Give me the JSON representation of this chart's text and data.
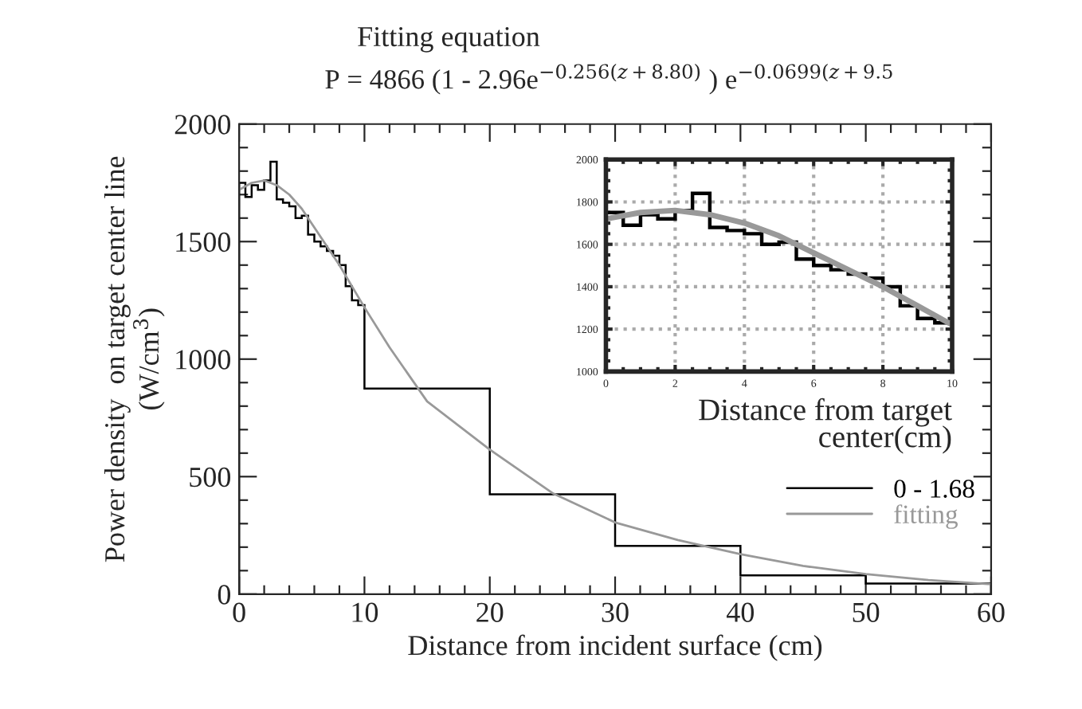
{
  "chart_data": [
    {
      "type": "histogram",
      "title": "Fitting equation",
      "subtitle": "P = 4866 (1 - 2.96e$^{−0.256(z+8.80)}$ ) e$^{−0.0699(z+9.5}$",
      "xlabel": "Distance from incident surface (cm)",
      "ylabel": "Power density  on target center line\n(W/cm$^{3}$)",
      "xlim": [
        0,
        60
      ],
      "ylim": [
        0,
        2000
      ],
      "xticks": [
        0,
        10,
        20,
        30,
        40,
        50,
        60
      ],
      "yticks": [
        0,
        500,
        1000,
        1500,
        2000
      ],
      "grid": false,
      "legend": "right",
      "series": [
        {
          "name": "0 - 1.68",
          "color": "#000000",
          "bins": [
            0,
            0.5,
            1,
            1.5,
            2,
            2.5,
            3,
            3.5,
            4,
            4.5,
            5,
            5.5,
            6,
            6.5,
            7,
            7.5,
            8,
            8.5,
            9,
            9.5,
            10,
            20,
            30,
            40,
            50,
            60
          ],
          "values": [
            1750,
            1690,
            1740,
            1720,
            1760,
            1840,
            1680,
            1665,
            1650,
            1600,
            1610,
            1530,
            1500,
            1480,
            1460,
            1440,
            1400,
            1310,
            1250,
            1230,
            875,
            425,
            205,
            80,
            45
          ]
        },
        {
          "name": "fitting",
          "type": "line",
          "color": "#999999",
          "x": [
            0,
            1,
            2,
            3,
            4,
            5,
            6,
            8,
            10,
            12,
            15,
            20,
            25,
            30,
            35,
            40,
            45,
            50,
            55,
            60
          ],
          "values": [
            1720,
            1750,
            1760,
            1740,
            1700,
            1640,
            1560,
            1400,
            1220,
            1050,
            820,
            615,
            430,
            305,
            230,
            170,
            120,
            85,
            60,
            42
          ]
        }
      ]
    },
    {
      "type": "histogram",
      "xlabel": "Distance from target\ncenter(cm)",
      "xlim": [
        0,
        10
      ],
      "ylim": [
        1000,
        2000
      ],
      "xticks": [
        0,
        2,
        4,
        6,
        8,
        10
      ],
      "yticks": [
        1000,
        1200,
        1400,
        1600,
        1800,
        2000
      ],
      "grid": true,
      "series": [
        {
          "color": "#000000",
          "bins": [
            0,
            0.5,
            1,
            1.5,
            2,
            2.5,
            3,
            3.5,
            4,
            4.5,
            5,
            5.5,
            6,
            6.5,
            7,
            7.5,
            8,
            8.5,
            9,
            9.5,
            10
          ],
          "values": [
            1750,
            1690,
            1740,
            1720,
            1760,
            1840,
            1680,
            1665,
            1650,
            1600,
            1610,
            1530,
            1500,
            1480,
            1460,
            1440,
            1400,
            1310,
            1250,
            1230
          ]
        },
        {
          "type": "line",
          "color": "#999999",
          "x": [
            0,
            1,
            2,
            3,
            4,
            5,
            6,
            7,
            8,
            9,
            10
          ],
          "values": [
            1720,
            1750,
            1760,
            1740,
            1700,
            1640,
            1560,
            1480,
            1400,
            1310,
            1220
          ]
        }
      ]
    }
  ]
}
